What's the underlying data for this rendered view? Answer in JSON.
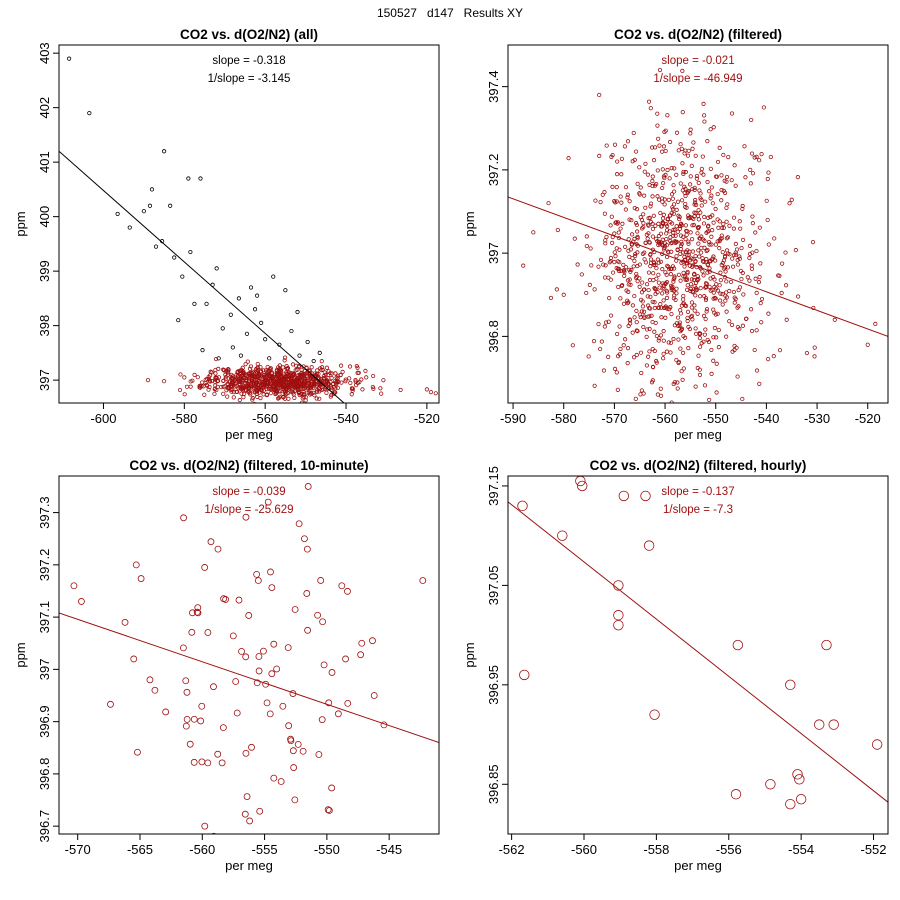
{
  "page": {
    "title": "150527   d147   Results XY"
  },
  "chart_data": [
    {
      "type": "scatter",
      "title": "CO2 vs. d(O2/N2) (all)",
      "xlabel": "per meg",
      "ylabel": "ppm",
      "xlim": [
        -611,
        -517
      ],
      "ylim": [
        396.58,
        403.15
      ],
      "xticks": [
        -600,
        -580,
        -560,
        -540,
        -520
      ],
      "yticks": [
        397,
        398,
        399,
        400,
        401,
        402,
        403
      ],
      "annotation": [
        "slope = -0.318",
        "1/slope = -3.145"
      ],
      "annotation_color": "#000000",
      "line_color": "#000000",
      "fit_line": {
        "x": [
          -611,
          -540.5
        ],
        "y": [
          401.2,
          396.58
        ]
      },
      "series": [
        {
          "name": "all",
          "color": "#000000",
          "points": [
            [
              -608.5,
              402.9
            ],
            [
              -603.5,
              401.9
            ],
            [
              -596.5,
              400.05
            ],
            [
              -593.5,
              399.8
            ],
            [
              -590,
              400.1
            ],
            [
              -588.5,
              400.2
            ],
            [
              -588,
              400.5
            ],
            [
              -585,
              401.2
            ],
            [
              -583.5,
              400.2
            ],
            [
              -585.5,
              399.55
            ],
            [
              -587,
              399.45
            ],
            [
              -582.5,
              399.25
            ],
            [
              -580.5,
              398.9
            ],
            [
              -578.5,
              399.35
            ],
            [
              -579,
              400.7
            ],
            [
              -576,
              400.7
            ],
            [
              -577.5,
              398.4
            ],
            [
              -573,
              398.75
            ],
            [
              -572,
              399.05
            ],
            [
              -570.5,
              397.95
            ],
            [
              -568.5,
              398.2
            ],
            [
              -566.5,
              398.5
            ],
            [
              -564.5,
              397.85
            ],
            [
              -563.5,
              398.7
            ],
            [
              -562.5,
              398.3
            ],
            [
              -561,
              398.05
            ],
            [
              -560,
              397.75
            ],
            [
              -558,
              398.9
            ],
            [
              -556.5,
              397.65
            ],
            [
              -555,
              398.65
            ],
            [
              -553.5,
              397.9
            ],
            [
              -552,
              398.25
            ],
            [
              -551.5,
              397.45
            ],
            [
              -549.5,
              397.7
            ],
            [
              -548,
              397.35
            ],
            [
              -546.5,
              397.5
            ],
            [
              -575.5,
              397.55
            ],
            [
              -568,
              397.6
            ],
            [
              -566,
              397.45
            ],
            [
              -571.5,
              397.4
            ],
            [
              -581.5,
              398.1
            ],
            [
              -559,
              397.4
            ],
            [
              -562,
              398.55
            ],
            [
              -574.5,
              398.4
            ]
          ]
        },
        {
          "name": "filtered",
          "color": "#a01010",
          "cloud": {
            "n": 850,
            "cx": -557,
            "sx": 8.5,
            "cy": 396.98,
            "sy": 0.14,
            "seed": 11
          },
          "points": [
            [
              -585,
              396.98
            ],
            [
              -589,
              397.0
            ],
            [
              -580,
              397.05
            ],
            [
              -526.5,
              396.82
            ],
            [
              -520,
              396.83
            ],
            [
              -519,
              396.78
            ],
            [
              -531.5,
              396.85
            ],
            [
              -535,
              397.05
            ],
            [
              -539,
              397.25
            ]
          ]
        }
      ]
    },
    {
      "type": "scatter",
      "title": "CO2 vs. d(O2/N2) (filtered)",
      "xlabel": "per meg",
      "ylabel": "ppm",
      "xlim": [
        -591,
        -516
      ],
      "ylim": [
        396.64,
        397.5
      ],
      "xticks": [
        -590,
        -580,
        -570,
        -560,
        -550,
        -540,
        -530,
        -520
      ],
      "yticks": [
        396.8,
        397.0,
        397.2,
        397.4
      ],
      "annotation": [
        "slope = -0.021",
        "1/slope = -46.949"
      ],
      "annotation_color": "#a01010",
      "line_color": "#a01010",
      "fit_line": {
        "x": [
          -591,
          -516
        ],
        "y": [
          397.135,
          396.8
        ]
      },
      "series": [
        {
          "name": "filtered",
          "color": "#a01010",
          "cloud": {
            "n": 1000,
            "cx": -557,
            "sx": 8.5,
            "cy": 396.98,
            "sy": 0.15,
            "seed": 7
          },
          "points": [
            [
              -588,
              396.97
            ],
            [
              -586,
              397.05
            ],
            [
              -583,
              397.12
            ],
            [
              -580,
              396.9
            ],
            [
              -536,
              396.84
            ],
            [
              -532,
              396.76
            ],
            [
              -526.5,
              396.84
            ],
            [
              -520,
              396.78
            ],
            [
              -518.5,
              396.83
            ],
            [
              -540.5,
              397.35
            ],
            [
              -543,
              397.32
            ],
            [
              -573,
              397.38
            ],
            [
              -561,
              397.44
            ]
          ]
        }
      ]
    },
    {
      "type": "scatter",
      "title": "CO2 vs. d(O2/N2) (filtered, 10-minute)",
      "xlabel": "per meg",
      "ylabel": "ppm",
      "xlim": [
        -571.5,
        -541
      ],
      "ylim": [
        396.685,
        397.37
      ],
      "xticks": [
        -570,
        -565,
        -560,
        -555,
        -550,
        -545
      ],
      "yticks": [
        396.7,
        396.8,
        396.9,
        397.0,
        397.1,
        397.2,
        397.3
      ],
      "annotation": [
        "slope = -0.039",
        "1/slope = -25.629"
      ],
      "annotation_color": "#a01010",
      "line_color": "#a01010",
      "fit_line": {
        "x": [
          -571.5,
          -541
        ],
        "y": [
          397.108,
          396.86
        ]
      },
      "series": [
        {
          "name": "10-minute",
          "color": "#a01010",
          "cloud": {
            "n": 95,
            "cx": -556,
            "sx": 4.2,
            "cy": 396.97,
            "sy": 0.14,
            "seed": 23
          },
          "points": [
            [
              -570.3,
              397.16
            ],
            [
              -569.7,
              397.13
            ],
            [
              -565.3,
              397.2
            ],
            [
              -566.2,
              397.09
            ],
            [
              -561.5,
              397.29
            ],
            [
              -555.5,
              397.17
            ],
            [
              -551.5,
              397.35
            ],
            [
              -551.8,
              397.25
            ],
            [
              -542.3,
              397.17
            ],
            [
              -546.2,
              396.95
            ],
            [
              -547.2,
              397.05
            ],
            [
              -548.5,
              397.02
            ],
            [
              -548.8,
              397.16
            ],
            [
              -556.2,
              396.71
            ],
            [
              -559.8,
              396.7
            ],
            [
              -549.8,
              396.73
            ],
            [
              -564.2,
              396.98
            ],
            [
              -563.8,
              396.96
            ],
            [
              -565.5,
              397.02
            ]
          ]
        }
      ]
    },
    {
      "type": "scatter",
      "title": "CO2 vs. d(O2/N2) (filtered, hourly)",
      "xlabel": "per meg",
      "ylabel": "ppm",
      "xlim": [
        -562.1,
        -551.6
      ],
      "ylim": [
        396.8,
        397.16
      ],
      "xticks": [
        -562,
        -560,
        -558,
        -556,
        -554,
        -552
      ],
      "yticks": [
        396.85,
        396.95,
        397.05,
        397.15
      ],
      "annotation": [
        "slope = -0.137",
        "1/slope = -7.3"
      ],
      "annotation_color": "#a01010",
      "line_color": "#a01010",
      "fit_line": {
        "x": [
          -562.1,
          -551.6
        ],
        "y": [
          397.134,
          396.832
        ]
      },
      "series": [
        {
          "name": "hourly",
          "color": "#a01010",
          "points": [
            [
              -561.7,
              397.13
            ],
            [
              -561.65,
              396.96
            ],
            [
              -560.6,
              397.1
            ],
            [
              -560.1,
              397.155
            ],
            [
              -560.05,
              397.15
            ],
            [
              -558.9,
              397.14
            ],
            [
              -558.3,
              397.14
            ],
            [
              -558.2,
              397.09
            ],
            [
              -559.05,
              397.05
            ],
            [
              -559.05,
              397.02
            ],
            [
              -559.05,
              397.01
            ],
            [
              -558.05,
              396.92
            ],
            [
              -555.75,
              396.99
            ],
            [
              -555.8,
              396.84
            ],
            [
              -554.85,
              396.85
            ],
            [
              -554.3,
              396.95
            ],
            [
              -554.1,
              396.86
            ],
            [
              -554.05,
              396.855
            ],
            [
              -554.0,
              396.835
            ],
            [
              -554.3,
              396.83
            ],
            [
              -553.5,
              396.91
            ],
            [
              -553.1,
              396.91
            ],
            [
              -553.3,
              396.99
            ],
            [
              -551.9,
              396.89
            ]
          ]
        }
      ]
    }
  ]
}
